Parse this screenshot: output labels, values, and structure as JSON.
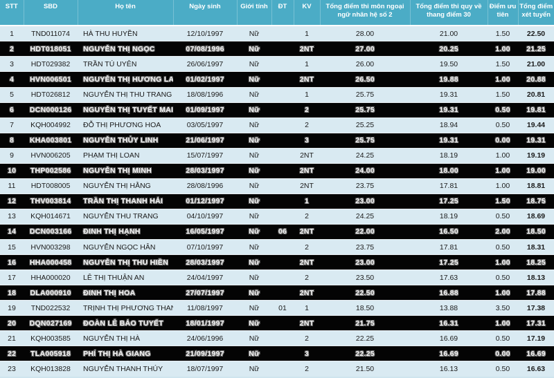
{
  "colors": {
    "header_bg": "#4BACC6",
    "header_text": "#FFFFFF",
    "row_light_bg": "#D9EAF2",
    "row_highlight_bg": "#040404",
    "cell_text": "#1B1B1B"
  },
  "table": {
    "columns": [
      {
        "key": "stt",
        "label": "STT"
      },
      {
        "key": "sbd",
        "label": "SBD"
      },
      {
        "key": "hoten",
        "label": "Họ tên"
      },
      {
        "key": "ngaysinh",
        "label": "Ngày sinh"
      },
      {
        "key": "gioitinh",
        "label": "Giới tính"
      },
      {
        "key": "dt",
        "label": "ĐT"
      },
      {
        "key": "kv",
        "label": "KV"
      },
      {
        "key": "ngoaingu",
        "label": "Tổng điểm thi môn ngoại ngữ nhân hệ số 2"
      },
      {
        "key": "quyve",
        "label": "Tổng điểm thi quy về thang điểm 30"
      },
      {
        "key": "uutien",
        "label": "Điểm ưu tiên"
      },
      {
        "key": "xettuyen",
        "label": "Tổng điểm xét tuyển"
      }
    ],
    "rows": [
      {
        "stt": "1",
        "sbd": "TND011074",
        "hoten": "HÀ THU HUYỀN",
        "ngaysinh": "12/10/1997",
        "gioitinh": "Nữ",
        "dt": "",
        "kv": "1",
        "ngoaingu": "28.00",
        "quyve": "21.00",
        "uutien": "1.50",
        "xettuyen": "22.50",
        "highlighted": false
      },
      {
        "stt": "2",
        "sbd": "HDT018051",
        "hoten": "NGUYỄN THỊ NGỌC",
        "ngaysinh": "07/08/1996",
        "gioitinh": "Nữ",
        "dt": "",
        "kv": "2NT",
        "ngoaingu": "27.00",
        "quyve": "20.25",
        "uutien": "1.00",
        "xettuyen": "21.25",
        "highlighted": true
      },
      {
        "stt": "3",
        "sbd": "HDT029382",
        "hoten": "TRẦN TÚ UYÊN",
        "ngaysinh": "26/06/1997",
        "gioitinh": "Nữ",
        "dt": "",
        "kv": "1",
        "ngoaingu": "26.00",
        "quyve": "19.50",
        "uutien": "1.50",
        "xettuyen": "21.00",
        "highlighted": false
      },
      {
        "stt": "4",
        "sbd": "HVN006501",
        "hoten": "NGUYỄN THỊ HƯƠNG LAN",
        "ngaysinh": "01/02/1997",
        "gioitinh": "Nữ",
        "dt": "",
        "kv": "2NT",
        "ngoaingu": "26.50",
        "quyve": "19.88",
        "uutien": "1.00",
        "xettuyen": "20.88",
        "highlighted": true
      },
      {
        "stt": "5",
        "sbd": "HDT026812",
        "hoten": "NGUYỄN THỊ THU TRANG",
        "ngaysinh": "18/08/1996",
        "gioitinh": "Nữ",
        "dt": "",
        "kv": "1",
        "ngoaingu": "25.75",
        "quyve": "19.31",
        "uutien": "1.50",
        "xettuyen": "20.81",
        "highlighted": false
      },
      {
        "stt": "6",
        "sbd": "DCN000126",
        "hoten": "NGUYỄN THỊ TUYẾT MAI",
        "ngaysinh": "01/09/1997",
        "gioitinh": "Nữ",
        "dt": "",
        "kv": "2",
        "ngoaingu": "25.75",
        "quyve": "19.31",
        "uutien": "0.50",
        "xettuyen": "19.81",
        "highlighted": true
      },
      {
        "stt": "7",
        "sbd": "KQH004992",
        "hoten": "ĐỖ THỊ PHƯƠNG HOA",
        "ngaysinh": "03/05/1997",
        "gioitinh": "Nữ",
        "dt": "",
        "kv": "2",
        "ngoaingu": "25.25",
        "quyve": "18.94",
        "uutien": "0.50",
        "xettuyen": "19.44",
        "highlighted": false
      },
      {
        "stt": "8",
        "sbd": "KHA003801",
        "hoten": "NGUYỄN THỦY LINH",
        "ngaysinh": "21/06/1997",
        "gioitinh": "Nữ",
        "dt": "",
        "kv": "3",
        "ngoaingu": "25.75",
        "quyve": "19.31",
        "uutien": "0.00",
        "xettuyen": "19.31",
        "highlighted": true
      },
      {
        "stt": "9",
        "sbd": "HVN006205",
        "hoten": "PHẠM THỊ LOAN",
        "ngaysinh": "15/07/1997",
        "gioitinh": "Nữ",
        "dt": "",
        "kv": "2NT",
        "ngoaingu": "24.25",
        "quyve": "18.19",
        "uutien": "1.00",
        "xettuyen": "19.19",
        "highlighted": false
      },
      {
        "stt": "10",
        "sbd": "THP002586",
        "hoten": "NGUYỄN THỊ MINH",
        "ngaysinh": "28/03/1997",
        "gioitinh": "Nữ",
        "dt": "",
        "kv": "2NT",
        "ngoaingu": "24.00",
        "quyve": "18.00",
        "uutien": "1.00",
        "xettuyen": "19.00",
        "highlighted": true
      },
      {
        "stt": "11",
        "sbd": "HDT008005",
        "hoten": "NGUYỄN THỊ HẰNG",
        "ngaysinh": "28/08/1996",
        "gioitinh": "Nữ",
        "dt": "",
        "kv": "2NT",
        "ngoaingu": "23.75",
        "quyve": "17.81",
        "uutien": "1.00",
        "xettuyen": "18.81",
        "highlighted": false
      },
      {
        "stt": "12",
        "sbd": "THV003814",
        "hoten": "TRẦN THỊ THANH HẢI",
        "ngaysinh": "01/12/1997",
        "gioitinh": "Nữ",
        "dt": "",
        "kv": "1",
        "ngoaingu": "23.00",
        "quyve": "17.25",
        "uutien": "1.50",
        "xettuyen": "18.75",
        "highlighted": true
      },
      {
        "stt": "13",
        "sbd": "KQH014671",
        "hoten": "NGUYỄN THU TRANG",
        "ngaysinh": "04/10/1997",
        "gioitinh": "Nữ",
        "dt": "",
        "kv": "2",
        "ngoaingu": "24.25",
        "quyve": "18.19",
        "uutien": "0.50",
        "xettuyen": "18.69",
        "highlighted": false
      },
      {
        "stt": "14",
        "sbd": "DCN003166",
        "hoten": "ĐINH THỊ HẠNH",
        "ngaysinh": "16/05/1997",
        "gioitinh": "Nữ",
        "dt": "06",
        "kv": "2NT",
        "ngoaingu": "22.00",
        "quyve": "16.50",
        "uutien": "2.00",
        "xettuyen": "18.50",
        "highlighted": true
      },
      {
        "stt": "15",
        "sbd": "HVN003298",
        "hoten": "NGUYỄN NGỌC HÂN",
        "ngaysinh": "07/10/1997",
        "gioitinh": "Nữ",
        "dt": "",
        "kv": "2",
        "ngoaingu": "23.75",
        "quyve": "17.81",
        "uutien": "0.50",
        "xettuyen": "18.31",
        "highlighted": false
      },
      {
        "stt": "16",
        "sbd": "HHA000458",
        "hoten": "NGUYỄN THỊ THU HIỀN",
        "ngaysinh": "28/03/1997",
        "gioitinh": "Nữ",
        "dt": "",
        "kv": "2NT",
        "ngoaingu": "23.00",
        "quyve": "17.25",
        "uutien": "1.00",
        "xettuyen": "18.25",
        "highlighted": true
      },
      {
        "stt": "17",
        "sbd": "HHA000020",
        "hoten": "LÊ THỊ THUẬN AN",
        "ngaysinh": "24/04/1997",
        "gioitinh": "Nữ",
        "dt": "",
        "kv": "2",
        "ngoaingu": "23.50",
        "quyve": "17.63",
        "uutien": "0.50",
        "xettuyen": "18.13",
        "highlighted": false
      },
      {
        "stt": "18",
        "sbd": "DLA000910",
        "hoten": "ĐINH THỊ HOA",
        "ngaysinh": "27/07/1997",
        "gioitinh": "Nữ",
        "dt": "",
        "kv": "2NT",
        "ngoaingu": "22.50",
        "quyve": "16.88",
        "uutien": "1.00",
        "xettuyen": "17.88",
        "highlighted": true
      },
      {
        "stt": "19",
        "sbd": "TND022532",
        "hoten": "TRỊNH THỊ PHƯƠNG THANH",
        "ngaysinh": "11/08/1997",
        "gioitinh": "Nữ",
        "dt": "01",
        "kv": "1",
        "ngoaingu": "18.50",
        "quyve": "13.88",
        "uutien": "3.50",
        "xettuyen": "17.38",
        "highlighted": false
      },
      {
        "stt": "20",
        "sbd": "DQN027169",
        "hoten": "ĐOÀN LÊ BẢO TUYẾT",
        "ngaysinh": "18/01/1997",
        "gioitinh": "Nữ",
        "dt": "",
        "kv": "2NT",
        "ngoaingu": "21.75",
        "quyve": "16.31",
        "uutien": "1.00",
        "xettuyen": "17.31",
        "highlighted": true
      },
      {
        "stt": "21",
        "sbd": "KQH003585",
        "hoten": "NGUYỄN THỊ HÀ",
        "ngaysinh": "24/06/1996",
        "gioitinh": "Nữ",
        "dt": "",
        "kv": "2",
        "ngoaingu": "22.25",
        "quyve": "16.69",
        "uutien": "0.50",
        "xettuyen": "17.19",
        "highlighted": false
      },
      {
        "stt": "22",
        "sbd": "TLA005918",
        "hoten": "PHÍ THỊ HÀ GIANG",
        "ngaysinh": "21/09/1997",
        "gioitinh": "Nữ",
        "dt": "",
        "kv": "3",
        "ngoaingu": "22.25",
        "quyve": "16.69",
        "uutien": "0.00",
        "xettuyen": "16.69",
        "highlighted": true
      },
      {
        "stt": "23",
        "sbd": "KQH013828",
        "hoten": "NGUYỄN THANH THÚY",
        "ngaysinh": "18/07/1997",
        "gioitinh": "Nữ",
        "dt": "",
        "kv": "2",
        "ngoaingu": "21.50",
        "quyve": "16.13",
        "uutien": "0.50",
        "xettuyen": "16.63",
        "highlighted": false
      }
    ]
  }
}
